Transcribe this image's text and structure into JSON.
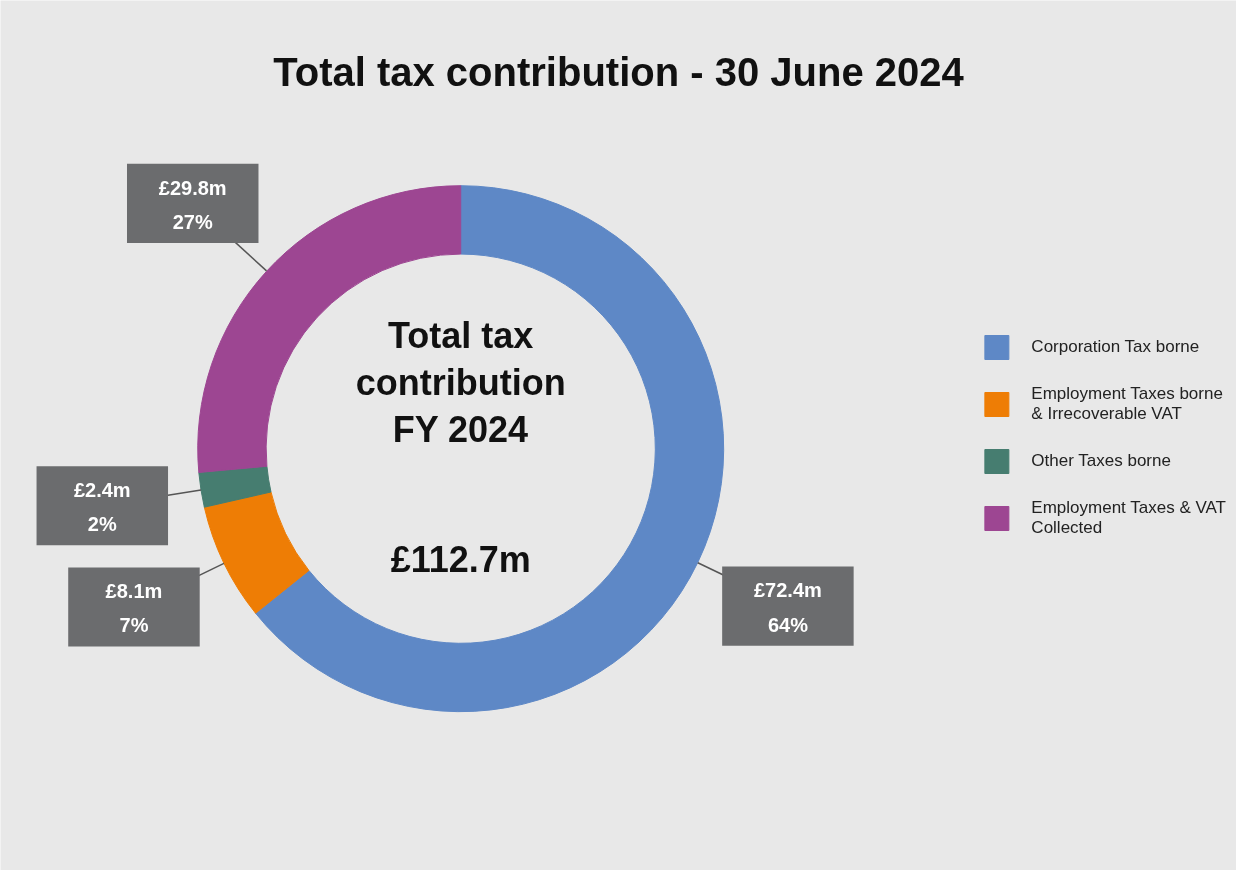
{
  "chart_data": {
    "type": "donut",
    "title": "Total tax contribution - 30 June 2024",
    "categories": [
      "Corporation Tax borne",
      "Employment Taxes borne & Irrecoverable VAT",
      "Other Taxes borne",
      "Employment Taxes & VAT Collected"
    ],
    "values": [
      72.4,
      8.1,
      2.4,
      29.8
    ],
    "colors": [
      "#5e88c6",
      "#ee7d05",
      "#467d70",
      "#9d4692"
    ],
    "value_labels": [
      "£72.4m",
      "£8.1m",
      "£2.4m",
      "£29.8m"
    ],
    "annotations": [
      "Total tax\ncontribution\nFY 2024",
      "£112.7m",
      "64%",
      "7%",
      "2%",
      "27%"
    ],
    "legend": "right"
  }
}
